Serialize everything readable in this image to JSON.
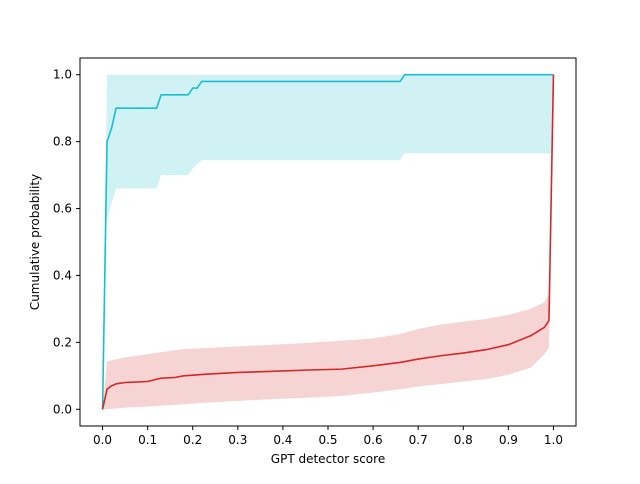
{
  "chart_data": {
    "type": "line",
    "title": "",
    "xlabel": "GPT detector score",
    "ylabel": "Cumulative probability",
    "xlim": [
      -0.05,
      1.05
    ],
    "ylim": [
      -0.05,
      1.05
    ],
    "xticks": [
      0.0,
      0.1,
      0.2,
      0.3,
      0.4,
      0.5,
      0.6,
      0.7,
      0.8,
      0.9,
      1.0
    ],
    "xtick_labels": [
      "0.0",
      "0.1",
      "0.2",
      "0.3",
      "0.4",
      "0.5",
      "0.6",
      "0.7",
      "0.8",
      "0.9",
      "1.0"
    ],
    "yticks": [
      0.0,
      0.2,
      0.4,
      0.6,
      0.8,
      1.0
    ],
    "ytick_labels": [
      "0.0",
      "0.2",
      "0.4",
      "0.6",
      "0.8",
      "1.0"
    ],
    "grid": false,
    "legend": false,
    "series": [
      {
        "color": "#17becf",
        "points": [
          [
            0.0,
            0.0
          ],
          [
            0.01,
            0.8
          ],
          [
            0.02,
            0.84
          ],
          [
            0.03,
            0.9
          ],
          [
            0.12,
            0.9
          ],
          [
            0.13,
            0.94
          ],
          [
            0.19,
            0.94
          ],
          [
            0.2,
            0.96
          ],
          [
            0.21,
            0.96
          ],
          [
            0.22,
            0.98
          ],
          [
            0.66,
            0.98
          ],
          [
            0.67,
            1.0
          ],
          [
            1.0,
            1.0
          ]
        ],
        "band": [
          [
            0.0,
            0.0,
            0.0
          ],
          [
            0.005,
            0.55,
            0.55
          ],
          [
            0.01,
            0.57,
            1.0
          ],
          [
            0.03,
            0.66,
            1.0
          ],
          [
            0.12,
            0.66,
            1.0
          ],
          [
            0.13,
            0.7,
            1.0
          ],
          [
            0.19,
            0.7,
            1.0
          ],
          [
            0.2,
            0.72,
            1.0
          ],
          [
            0.22,
            0.745,
            1.0
          ],
          [
            0.66,
            0.745,
            1.0
          ],
          [
            0.67,
            0.765,
            1.0
          ],
          [
            1.0,
            0.765,
            1.0
          ]
        ]
      },
      {
        "color": "#d62728",
        "points": [
          [
            0.0,
            0.0
          ],
          [
            0.01,
            0.06
          ],
          [
            0.02,
            0.07
          ],
          [
            0.03,
            0.076
          ],
          [
            0.05,
            0.08
          ],
          [
            0.1,
            0.083
          ],
          [
            0.13,
            0.093
          ],
          [
            0.16,
            0.095
          ],
          [
            0.18,
            0.1
          ],
          [
            0.23,
            0.105
          ],
          [
            0.3,
            0.11
          ],
          [
            0.37,
            0.113
          ],
          [
            0.45,
            0.117
          ],
          [
            0.53,
            0.12
          ],
          [
            0.6,
            0.13
          ],
          [
            0.66,
            0.14
          ],
          [
            0.7,
            0.15
          ],
          [
            0.75,
            0.16
          ],
          [
            0.8,
            0.168
          ],
          [
            0.85,
            0.178
          ],
          [
            0.9,
            0.193
          ],
          [
            0.95,
            0.22
          ],
          [
            0.98,
            0.245
          ],
          [
            0.99,
            0.265
          ],
          [
            1.0,
            1.0
          ]
        ],
        "band": [
          [
            0.0,
            0.0,
            0.0
          ],
          [
            0.01,
            0.0,
            0.143
          ],
          [
            0.05,
            0.005,
            0.155
          ],
          [
            0.1,
            0.008,
            0.165
          ],
          [
            0.18,
            0.015,
            0.18
          ],
          [
            0.23,
            0.02,
            0.183
          ],
          [
            0.3,
            0.025,
            0.188
          ],
          [
            0.37,
            0.03,
            0.192
          ],
          [
            0.45,
            0.034,
            0.198
          ],
          [
            0.53,
            0.04,
            0.205
          ],
          [
            0.6,
            0.05,
            0.212
          ],
          [
            0.66,
            0.06,
            0.225
          ],
          [
            0.7,
            0.068,
            0.24
          ],
          [
            0.75,
            0.075,
            0.253
          ],
          [
            0.8,
            0.083,
            0.262
          ],
          [
            0.85,
            0.09,
            0.27
          ],
          [
            0.9,
            0.103,
            0.282
          ],
          [
            0.95,
            0.125,
            0.3
          ],
          [
            0.98,
            0.165,
            0.32
          ],
          [
            0.99,
            0.185,
            0.345
          ],
          [
            1.0,
            1.0,
            1.0
          ]
        ]
      }
    ]
  }
}
